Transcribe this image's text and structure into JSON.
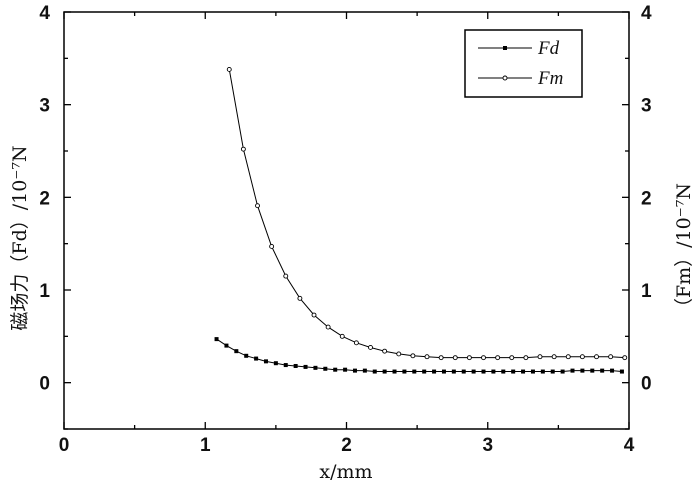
{
  "chart_data": {
    "type": "line",
    "xlabel": "x/mm",
    "ylabel_left": "磁场力（Fd）/10⁻⁷N",
    "ylabel_right": "（Fm）/10⁻⁷N",
    "xlim": [
      0,
      4
    ],
    "ylim_left": [
      -0.5,
      4
    ],
    "ylim_right": [
      -0.5,
      4
    ],
    "x_ticks": [
      "0",
      "1",
      "2",
      "3",
      "4"
    ],
    "y_ticks_left": [
      "0",
      "1",
      "2",
      "3",
      "4"
    ],
    "y_ticks_right": [
      "0",
      "1",
      "2",
      "3",
      "4"
    ],
    "grid": false,
    "legend_position": "top-right",
    "series": [
      {
        "name": "Fd",
        "marker": "filled-square",
        "x": [
          1.08,
          1.15,
          1.22,
          1.29,
          1.36,
          1.43,
          1.5,
          1.57,
          1.64,
          1.71,
          1.78,
          1.85,
          1.92,
          1.99,
          2.06,
          2.13,
          2.2,
          2.27,
          2.34,
          2.41,
          2.48,
          2.55,
          2.62,
          2.69,
          2.76,
          2.83,
          2.9,
          2.97,
          3.04,
          3.11,
          3.18,
          3.25,
          3.32,
          3.39,
          3.46,
          3.53,
          3.6,
          3.67,
          3.74,
          3.81,
          3.88,
          3.95
        ],
        "y": [
          0.47,
          0.4,
          0.34,
          0.29,
          0.26,
          0.23,
          0.21,
          0.19,
          0.18,
          0.17,
          0.16,
          0.15,
          0.14,
          0.14,
          0.13,
          0.13,
          0.12,
          0.12,
          0.12,
          0.12,
          0.12,
          0.12,
          0.12,
          0.12,
          0.12,
          0.12,
          0.12,
          0.12,
          0.12,
          0.12,
          0.12,
          0.12,
          0.12,
          0.12,
          0.12,
          0.12,
          0.13,
          0.13,
          0.13,
          0.13,
          0.13,
          0.12
        ]
      },
      {
        "name": "Fm",
        "marker": "open-circle",
        "x": [
          1.17,
          1.27,
          1.37,
          1.47,
          1.57,
          1.67,
          1.77,
          1.87,
          1.97,
          2.07,
          2.17,
          2.27,
          2.37,
          2.47,
          2.57,
          2.67,
          2.77,
          2.87,
          2.97,
          3.07,
          3.17,
          3.27,
          3.37,
          3.47,
          3.57,
          3.67,
          3.77,
          3.87,
          3.97
        ],
        "y": [
          3.38,
          2.52,
          1.91,
          1.47,
          1.15,
          0.91,
          0.73,
          0.6,
          0.5,
          0.43,
          0.38,
          0.34,
          0.31,
          0.29,
          0.28,
          0.27,
          0.27,
          0.27,
          0.27,
          0.27,
          0.27,
          0.27,
          0.28,
          0.28,
          0.28,
          0.28,
          0.28,
          0.28,
          0.27
        ]
      }
    ]
  }
}
